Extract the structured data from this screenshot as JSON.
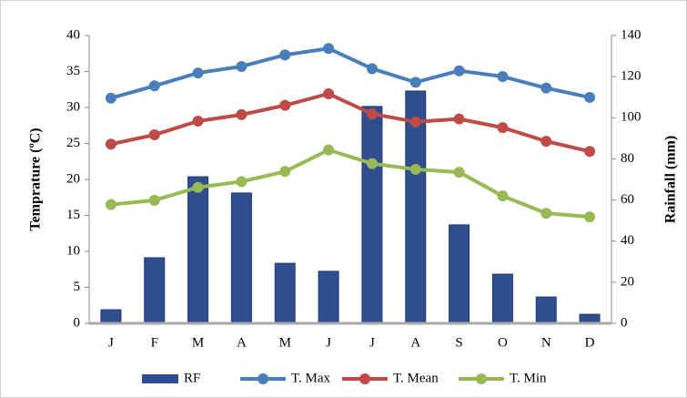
{
  "chart_data": {
    "type": "combo",
    "y_label": "Temprature  (ºC)",
    "y2_label": "Rainfall (mm)",
    "categories": [
      "J",
      "F",
      "M",
      "A",
      "M",
      "J",
      "J",
      "A",
      "S",
      "O",
      "N",
      "D"
    ],
    "ylim": [
      0,
      40
    ],
    "yticks": [
      0,
      5,
      10,
      15,
      20,
      25,
      30,
      35,
      40
    ],
    "y2lim": [
      0,
      140
    ],
    "y2ticks": [
      0,
      20,
      40,
      60,
      80,
      100,
      120,
      140
    ],
    "legend": "bottom",
    "series": [
      {
        "name": "RF",
        "type": "bar",
        "axis": "y2",
        "color": "#2f4d8f",
        "values": [
          6.6,
          31.9,
          71.3,
          63.4,
          29.2,
          25.3,
          105.5,
          113,
          47.9,
          23.9,
          12.8,
          4.4
        ]
      },
      {
        "name": "T. Max",
        "type": "line",
        "color": "#4a7ebb",
        "values": [
          31.3,
          33.0,
          34.8,
          35.7,
          37.3,
          38.2,
          35.4,
          33.5,
          35.1,
          34.3,
          32.7,
          31.4
        ]
      },
      {
        "name": "T. Mean",
        "type": "line",
        "color": "#be4b48",
        "values": [
          24.9,
          26.2,
          28.1,
          29.0,
          30.3,
          31.9,
          29.1,
          28.0,
          28.4,
          27.2,
          25.3,
          23.9
        ]
      },
      {
        "name": "T. Min",
        "type": "line",
        "color": "#98b954",
        "values": [
          16.5,
          17.1,
          18.9,
          19.7,
          21.1,
          24.1,
          22.2,
          21.4,
          21.0,
          17.7,
          15.3,
          14.8
        ]
      }
    ]
  }
}
